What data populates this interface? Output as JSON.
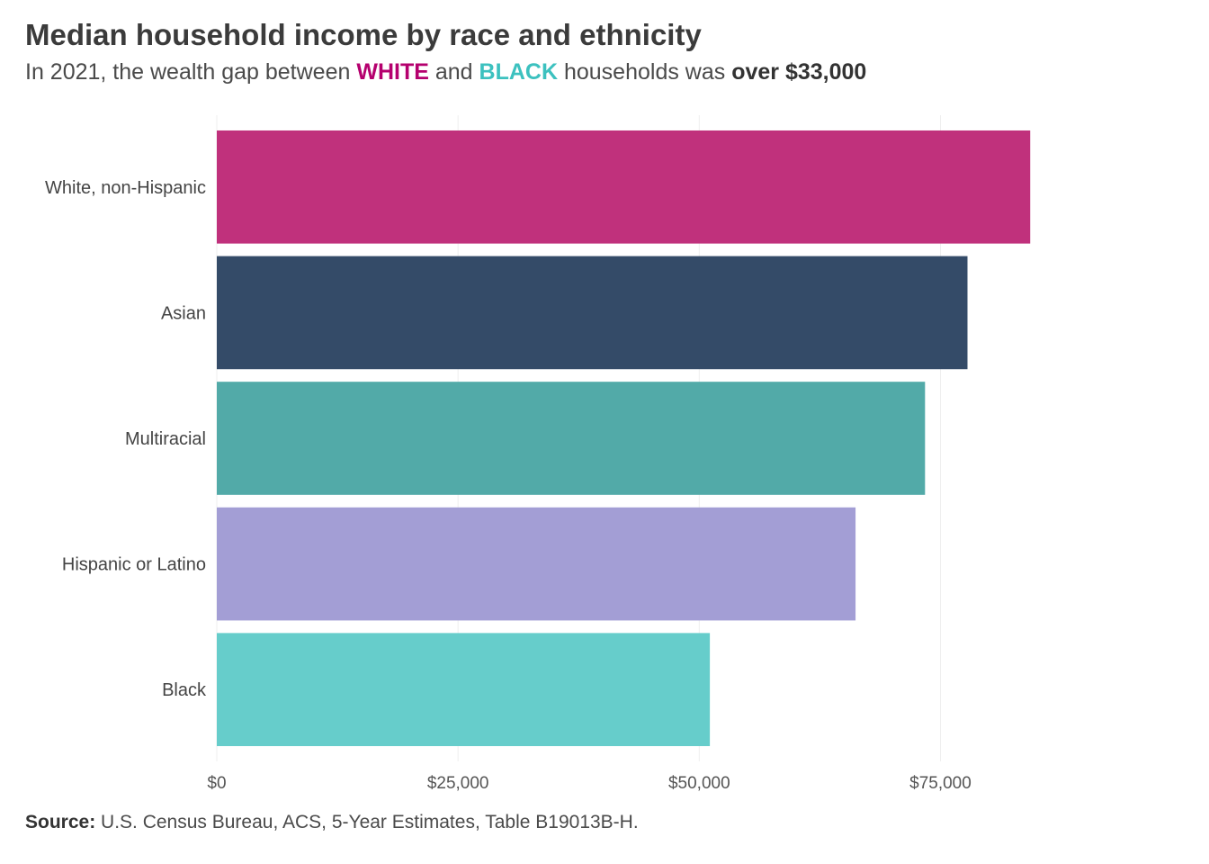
{
  "header": {
    "title": "Median household income by race and ethnicity",
    "subtitle_pre": "In 2021, the wealth gap between",
    "subtitle_white": "WHITE",
    "subtitle_and": "and",
    "subtitle_black": "BLACK",
    "subtitle_mid": "households was",
    "subtitle_amount": "over $33,000"
  },
  "colors": {
    "white_highlight": "#b5006e",
    "black_highlight": "#3cc1bf",
    "grid": "#efefef",
    "axis_text": "#555555"
  },
  "footer": {
    "source_label": "Source:",
    "source_text": "U.S. Census Bureau, ACS, 5-Year Estimates, Table B19013B-H."
  },
  "chart_data": {
    "type": "bar",
    "orientation": "horizontal",
    "title": "",
    "xlabel": "",
    "ylabel": "",
    "grid": true,
    "categories": [
      "White, non-Hispanic",
      "Asian",
      "Multiracial",
      "Hispanic or Latino",
      "Black"
    ],
    "values": [
      84300,
      77800,
      73400,
      66200,
      51100
    ],
    "colors": [
      "#c0317c",
      "#344b68",
      "#52aaa8",
      "#a39ed5",
      "#66cdcb"
    ],
    "xlim": [
      0,
      95000
    ],
    "xticks": [
      0,
      25000,
      50000,
      75000
    ],
    "xtick_labels": [
      "$0",
      "$25,000",
      "$50,000",
      "$75,000"
    ]
  }
}
